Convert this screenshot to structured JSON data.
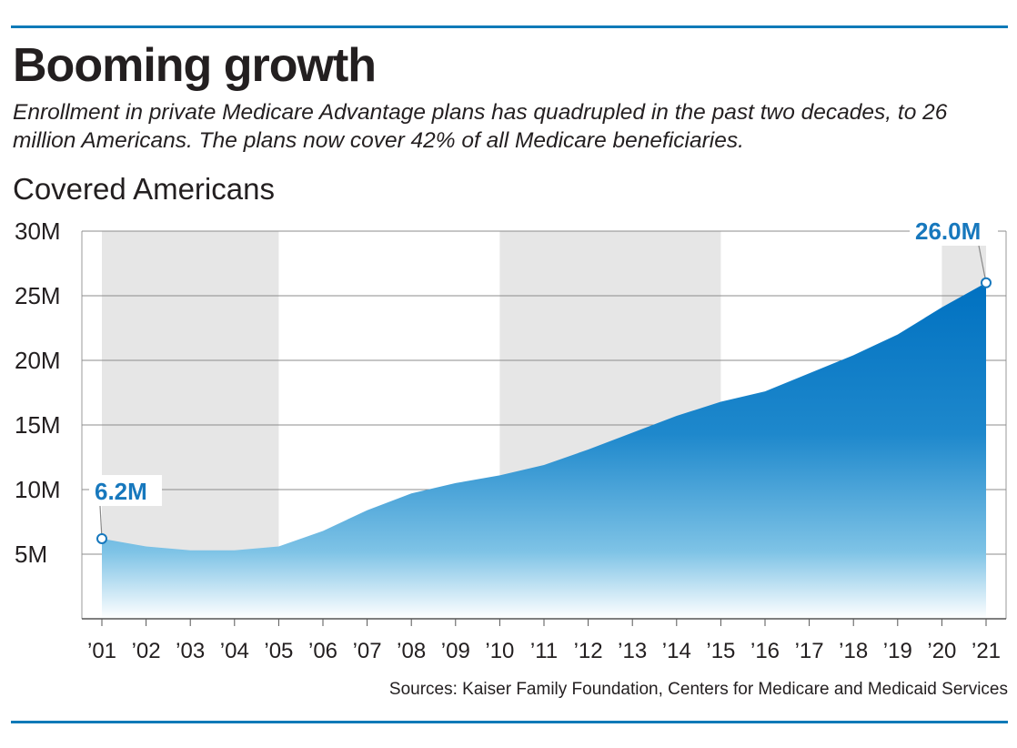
{
  "title": "Booming growth",
  "subtitle": "Enrollment in private Medicare Advantage plans has quadrupled in the past two decades, to 26 million Americans. The plans now cover 42% of all Medicare beneficiaries.",
  "ylabel_top": "Covered Americans",
  "source": "Sources: Kaiser Family Foundation, Centers for Medicare and Medicaid Services",
  "colors": {
    "accent": "#0f7ab8",
    "area_dark": "#0071c1",
    "area_light": "#ffffff",
    "band": "#e6e6e6",
    "label": "#1778bd"
  },
  "chart_data": {
    "type": "area",
    "x": [
      "’01",
      "’02",
      "’03",
      "’04",
      "’05",
      "’06",
      "’07",
      "’08",
      "’09",
      "’10",
      "’11",
      "’12",
      "’13",
      "’14",
      "’15",
      "’16",
      "’17",
      "’18",
      "’19",
      "’20",
      "’21"
    ],
    "series": [
      {
        "values": [
          6.2,
          5.6,
          5.3,
          5.3,
          5.6,
          6.8,
          8.4,
          9.7,
          10.5,
          11.1,
          11.9,
          13.1,
          14.4,
          15.7,
          16.8,
          17.6,
          19.0,
          20.4,
          22.0,
          24.1,
          26.0
        ]
      }
    ],
    "yticks": [
      5,
      10,
      15,
      20,
      25,
      30
    ],
    "ytick_labels": [
      "5M",
      "10M",
      "15M",
      "20M",
      "25M",
      "30M"
    ],
    "ylim": [
      0,
      30
    ],
    "grid": true,
    "shaded_periods": [
      [
        "’01",
        "’05"
      ],
      [
        "’10",
        "’15"
      ],
      [
        "’20",
        "’21"
      ]
    ],
    "annotations": [
      {
        "x": "’01",
        "value": 6.2,
        "label": "6.2M"
      },
      {
        "x": "’21",
        "value": 26.0,
        "label": "26.0M"
      }
    ]
  }
}
